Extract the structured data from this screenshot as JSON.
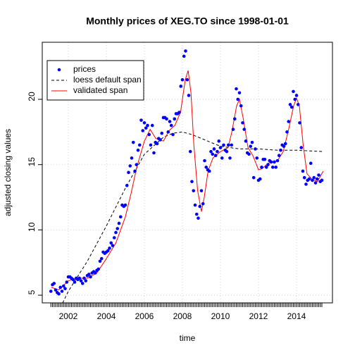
{
  "chart_data": {
    "type": "scatter",
    "title": "Monthly prices of XEG.TO since 1998-01-01",
    "x_label": "time",
    "y_label": "adjusted closing values",
    "xlim": [
      2000.63,
      2015.89
    ],
    "ylim": [
      4.41,
      24.37
    ],
    "xticks": [
      2002,
      2004,
      2006,
      2008,
      2010,
      2012,
      2014
    ],
    "yticks": [
      5,
      10,
      15,
      20
    ],
    "grid": true,
    "legend_position": "top-left",
    "series": [
      {
        "name": "prices",
        "color": "#0000ff",
        "mode": "points",
        "x": [
          2001.083,
          2001.167,
          2001.25,
          2001.333,
          2001.417,
          2001.5,
          2001.583,
          2001.667,
          2001.75,
          2001.833,
          2001.917,
          2002.0,
          2002.083,
          2002.167,
          2002.25,
          2002.333,
          2002.417,
          2002.5,
          2002.583,
          2002.667,
          2002.75,
          2002.833,
          2002.917,
          2003.0,
          2003.083,
          2003.167,
          2003.25,
          2003.333,
          2003.417,
          2003.5,
          2003.583,
          2003.667,
          2003.75,
          2003.833,
          2003.917,
          2004.0,
          2004.083,
          2004.167,
          2004.25,
          2004.333,
          2004.417,
          2004.5,
          2004.583,
          2004.667,
          2004.75,
          2004.833,
          2004.917,
          2005.0,
          2005.083,
          2005.167,
          2005.25,
          2005.333,
          2005.417,
          2005.5,
          2005.583,
          2005.667,
          2005.75,
          2005.833,
          2005.917,
          2006.0,
          2006.083,
          2006.167,
          2006.25,
          2006.333,
          2006.417,
          2006.5,
          2006.583,
          2006.667,
          2006.75,
          2006.833,
          2006.917,
          2007.0,
          2007.083,
          2007.167,
          2007.25,
          2007.333,
          2007.417,
          2007.5,
          2007.583,
          2007.667,
          2007.75,
          2007.833,
          2007.917,
          2008.0,
          2008.083,
          2008.167,
          2008.25,
          2008.333,
          2008.417,
          2008.5,
          2008.583,
          2008.667,
          2008.75,
          2008.833,
          2008.917,
          2009.0,
          2009.083,
          2009.167,
          2009.25,
          2009.333,
          2009.417,
          2009.5,
          2009.583,
          2009.667,
          2009.75,
          2009.833,
          2009.917,
          2010.0,
          2010.083,
          2010.167,
          2010.25,
          2010.333,
          2010.417,
          2010.5,
          2010.583,
          2010.667,
          2010.75,
          2010.833,
          2010.917,
          2011.0,
          2011.083,
          2011.167,
          2011.25,
          2011.333,
          2011.417,
          2011.5,
          2011.583,
          2011.667,
          2011.75,
          2011.833,
          2011.917,
          2012.0,
          2012.083,
          2012.167,
          2012.25,
          2012.333,
          2012.417,
          2012.5,
          2012.583,
          2012.667,
          2012.75,
          2012.833,
          2012.917,
          2013.0,
          2013.083,
          2013.167,
          2013.25,
          2013.333,
          2013.417,
          2013.5,
          2013.583,
          2013.667,
          2013.75,
          2013.833,
          2013.917,
          2014.0,
          2014.083,
          2014.167,
          2014.25,
          2014.333,
          2014.417,
          2014.5,
          2014.583,
          2014.667,
          2014.75,
          2014.833,
          2014.917,
          2015.0,
          2015.083,
          2015.167,
          2015.25,
          2015.333
        ],
        "values": [
          5.3,
          5.8,
          5.9,
          5.4,
          5.2,
          5.1,
          5.6,
          5.3,
          5.7,
          5.5,
          6.0,
          6.4,
          6.4,
          6.3,
          6.2,
          6.0,
          6.3,
          6.2,
          6.3,
          6.1,
          5.9,
          6.3,
          6.1,
          6.5,
          6.6,
          6.4,
          6.7,
          6.8,
          6.7,
          6.9,
          7.0,
          7.6,
          7.8,
          8.3,
          8.2,
          8.3,
          8.4,
          8.6,
          9.0,
          8.8,
          9.4,
          9.8,
          10.1,
          10.5,
          11.0,
          11.9,
          11.8,
          11.9,
          13.4,
          14.4,
          14.9,
          15.5,
          16.7,
          14.5,
          15.0,
          16.1,
          16.5,
          18.4,
          17.6,
          18.2,
          17.8,
          18.0,
          17.3,
          16.5,
          18.0,
          15.9,
          16.7,
          16.6,
          17.0,
          16.9,
          17.4,
          18.6,
          18.6,
          18.5,
          17.5,
          18.3,
          18.0,
          17.3,
          18.5,
          18.9,
          18.9,
          19.0,
          21.0,
          21.5,
          23.3,
          23.7,
          21.5,
          20.3,
          16.0,
          13.7,
          13.0,
          11.9,
          11.2,
          10.9,
          11.8,
          13.0,
          12.0,
          15.3,
          14.8,
          14.6,
          14.5,
          16.0,
          15.8,
          16.2,
          15.7,
          16.0,
          16.8,
          16.3,
          15.5,
          16.5,
          16.1,
          16.0,
          16.5,
          15.5,
          16.5,
          17.7,
          18.5,
          20.8,
          20.0,
          20.5,
          19.5,
          18.2,
          17.7,
          16.8,
          15.9,
          15.8,
          16.4,
          16.7,
          14.0,
          16.2,
          15.5,
          13.8,
          13.9,
          14.8,
          15.4,
          15.4,
          14.8,
          15.0,
          15.3,
          15.2,
          14.8,
          15.2,
          14.8,
          15.3,
          15.7,
          16.1,
          16.5,
          16.4,
          16.6,
          17.5,
          18.3,
          19.6,
          19.4,
          20.6,
          20.0,
          20.3,
          19.6,
          18.2,
          16.3,
          14.5,
          14.0,
          13.5,
          13.8,
          13.9,
          15.1,
          13.8,
          14.0,
          13.6,
          13.9,
          14.2,
          13.7,
          13.8
        ]
      },
      {
        "name": "loess default span",
        "color": "#000000",
        "mode": "line",
        "dashed": true,
        "x": [
          2001.7,
          2002,
          2003,
          2004,
          2005,
          2006,
          2007,
          2007.5,
          2008,
          2008.5,
          2009,
          2009.5,
          2010,
          2011,
          2012,
          2013,
          2014,
          2015.4
        ],
        "values": [
          4.4,
          5.3,
          7.6,
          10.3,
          13.2,
          15.8,
          17.1,
          17.4,
          17.5,
          17.3,
          17.0,
          16.7,
          16.4,
          16.2,
          16.2,
          16.1,
          16.1,
          16.0
        ]
      },
      {
        "name": "validated span",
        "color": "#ff0000",
        "mode": "line",
        "dashed": false,
        "x": [
          2001.1,
          2001.5,
          2002,
          2002.5,
          2003,
          2003.5,
          2004,
          2004.5,
          2005,
          2005.3,
          2005.6,
          2006,
          2006.3,
          2006.6,
          2007,
          2007.3,
          2007.6,
          2007.9,
          2008.15,
          2008.3,
          2008.45,
          2008.6,
          2008.8,
          2009.0,
          2009.15,
          2009.35,
          2009.6,
          2010,
          2010.4,
          2010.6,
          2010.85,
          2011.0,
          2011.2,
          2011.45,
          2011.7,
          2012.0,
          2012.2,
          2012.5,
          2013,
          2013.3,
          2013.6,
          2013.85,
          2014.0,
          2014.15,
          2014.35,
          2014.55,
          2014.8,
          2015.1,
          2015.4
        ],
        "values": [
          5.6,
          5.4,
          6.1,
          6.3,
          6.3,
          6.7,
          7.8,
          9.0,
          11.0,
          12.8,
          14.8,
          16.8,
          17.7,
          17.0,
          16.8,
          17.6,
          18.0,
          19.0,
          21.5,
          22.2,
          20.5,
          16.5,
          13.0,
          11.4,
          12.5,
          14.5,
          15.5,
          16.0,
          16.3,
          17.5,
          19.5,
          20.0,
          18.5,
          16.3,
          15.7,
          14.6,
          14.7,
          15.1,
          15.3,
          16.0,
          17.8,
          19.5,
          20.1,
          19.5,
          16.5,
          14.3,
          13.9,
          13.7,
          14.5
        ]
      }
    ]
  }
}
